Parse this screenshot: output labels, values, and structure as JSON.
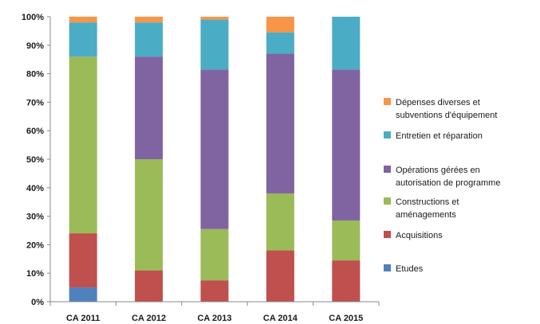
{
  "chart_data": {
    "type": "bar",
    "stacked": "percent",
    "title": "",
    "xlabel": "",
    "ylabel": "",
    "ylim": [
      0,
      100
    ],
    "y_ticks": [
      "0%",
      "10%",
      "20%",
      "30%",
      "40%",
      "50%",
      "60%",
      "70%",
      "80%",
      "90%",
      "100%"
    ],
    "grid": false,
    "legend_position": "right",
    "categories": [
      "CA 2011",
      "CA 2012",
      "CA 2013",
      "CA 2014",
      "CA 2015"
    ],
    "series": [
      {
        "name": "Etudes",
        "color": "#4F81BD",
        "values": [
          5,
          0,
          0,
          0,
          0
        ]
      },
      {
        "name": "Acquisitions",
        "color": "#C0504D",
        "values": [
          19,
          11,
          7.5,
          18,
          14.5
        ]
      },
      {
        "name": "Constructions et aménagements",
        "color": "#9BBB59",
        "values": [
          62,
          39,
          18,
          20,
          14
        ]
      },
      {
        "name": "Opérations gérées en autorisation de programme",
        "color": "#8064A2",
        "values": [
          0,
          36,
          56,
          49,
          53
        ]
      },
      {
        "name": "Entretien et réparation",
        "color": "#4BACC6",
        "values": [
          12,
          12,
          17.5,
          7.5,
          18.5
        ]
      },
      {
        "name": "Dépenses diverses et subventions d'équipement",
        "color": "#F79646",
        "values": [
          2,
          2,
          1,
          5.5,
          0
        ]
      }
    ],
    "legend": [
      {
        "lines": [
          "Dépenses diverses et",
          "subventions d'équipement"
        ],
        "color": "#F79646"
      },
      {
        "lines": [
          "Entretien et réparation"
        ],
        "color": "#4BACC6"
      },
      {
        "lines": [
          "Opérations gérées en",
          "autorisation de programme"
        ],
        "color": "#8064A2"
      },
      {
        "lines": [
          "Constructions et",
          "aménagements"
        ],
        "color": "#9BBB59"
      },
      {
        "lines": [
          "Acquisitions"
        ],
        "color": "#C0504D"
      },
      {
        "lines": [
          "Etudes"
        ],
        "color": "#4F81BD"
      }
    ]
  }
}
